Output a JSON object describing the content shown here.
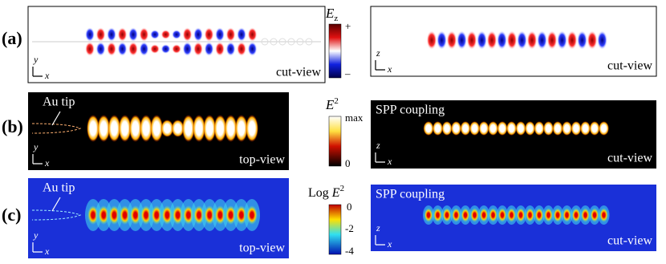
{
  "panels": [
    {
      "label": "(a)",
      "left": {
        "axis_y": "y",
        "axis_x": "x",
        "view": "cut-view"
      },
      "colorbar": {
        "symbol": "E",
        "subscript": "z",
        "top": "+",
        "bottom": "–"
      },
      "right": {
        "axis_y": "z",
        "axis_x": "x",
        "view": "cut-view"
      }
    },
    {
      "label": "(b)",
      "left": {
        "annotation": "Au tip",
        "axis_y": "y",
        "axis_x": "x",
        "view": "top-view"
      },
      "colorbar": {
        "symbol": "E",
        "superscript": "2",
        "top": "max",
        "bottom": "0"
      },
      "right": {
        "annotation": "SPP coupling",
        "axis_y": "z",
        "axis_x": "x",
        "view": "cut-view"
      }
    },
    {
      "label": "(c)",
      "left": {
        "annotation": "Au tip",
        "axis_y": "y",
        "axis_x": "x",
        "view": "top-view"
      },
      "colorbar": {
        "prefix": "Log",
        "symbol": "E",
        "superscript": "2",
        "ticks": [
          "0",
          "-2",
          "-4"
        ]
      },
      "right": {
        "annotation": "SPP coupling",
        "axis_y": "z",
        "axis_x": "x",
        "view": "cut-view"
      }
    }
  ]
}
